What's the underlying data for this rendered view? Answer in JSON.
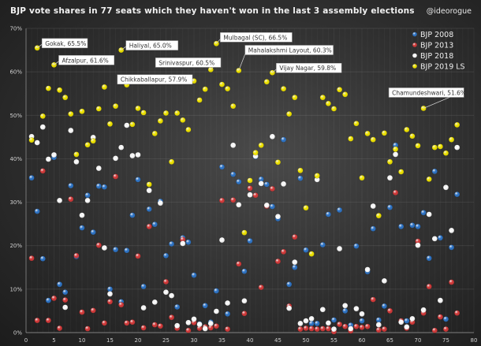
{
  "header": {
    "title": "BJP vote shares in 77 seats which they haven't won in the last 3 assembly elections",
    "handle": "@ideorogue"
  },
  "chart_data": {
    "type": "scatter",
    "title": "BJP vote shares in 77 seats which they haven't won in the last 3 assembly elections",
    "xlim": [
      0,
      80
    ],
    "ylim": [
      0,
      70
    ],
    "x_ticks": [
      "0",
      "5",
      "10",
      "15",
      "20",
      "25",
      "30",
      "35",
      "40",
      "45",
      "50",
      "55",
      "60",
      "65",
      "70",
      "75",
      "80"
    ],
    "y_ticks": [
      "0%",
      "10%",
      "20%",
      "30%",
      "40%",
      "50%",
      "60%",
      "70%"
    ],
    "grid": true,
    "legend": "top-right",
    "series": [
      {
        "name": "BJP 2008",
        "color": "#2e75c8",
        "values": [
          35.6,
          27.9,
          17.0,
          7.4,
          40.3,
          11.1,
          9.3,
          33.8,
          17.5,
          24.1,
          31.6,
          23.1,
          33.7,
          33.5,
          10.0,
          19.1,
          7.1,
          18.9,
          27.0,
          35.2,
          10.6,
          28.4,
          24.9,
          30.2,
          17.7,
          20.4,
          5.9,
          21.8,
          20.8,
          13.2,
          2.0,
          6.2,
          2.4,
          9.6,
          38.1,
          4.3,
          36.4,
          34.7,
          14.1,
          21.1,
          40.5,
          35.3,
          34.1,
          29.0,
          26.2,
          44.4,
          11.1,
          15.0,
          35.5,
          19.0,
          2.1,
          2.1,
          20.2,
          27.2,
          2.9,
          28.2,
          5.0,
          1.7,
          19.9,
          2.7,
          14.0,
          23.9,
          2.9,
          6.1,
          28.8,
          43.1,
          24.4,
          2.7,
          24.7,
          24.4,
          27.6,
          17.1,
          37.1,
          21.8,
          3.1,
          19.6,
          31.8
        ]
      },
      {
        "name": "BJP 2013",
        "color": "#d63a3a",
        "values": [
          17.1,
          2.8,
          37.2,
          2.8,
          7.9,
          1.0,
          7.5,
          30.7,
          17.7,
          4.7,
          0.9,
          5.1,
          20.1,
          2.2,
          7.1,
          35.9,
          6.4,
          2.2,
          2.4,
          17.6,
          1.1,
          24.4,
          1.8,
          1.5,
          11.7,
          3.5,
          1.0,
          21.4,
          0.5,
          2.3,
          1.0,
          1.3,
          1.1,
          1.5,
          30.4,
          0.8,
          30.5,
          15.8,
          4.4,
          33.2,
          31.6,
          10.4,
          29.1,
          33.1,
          16.4,
          18.6,
          6.1,
          22.0,
          0.8,
          1.0,
          0.9,
          0.8,
          0.9,
          0.9,
          0.2,
          1.9,
          1.4,
          0.4,
          1.4,
          1.2,
          1.4,
          7.6,
          0.6,
          0.8,
          5.0,
          32.2,
          2.7,
          1.0,
          2.4,
          21.0,
          4.5,
          10.6,
          0.5,
          3.6,
          0.8,
          11.6,
          4.5
        ]
      },
      {
        "name": "BJP 2018",
        "color": "#ffffff",
        "values": [
          45.1,
          43.7,
          47.3,
          39.9,
          40.9,
          30.4,
          5.8,
          46.5,
          39.3,
          27.0,
          30.4,
          44.9,
          37.8,
          19.5,
          8.9,
          40.1,
          42.6,
          47.7,
          40.7,
          40.9,
          5.7,
          32.7,
          7.0,
          29.8,
          9.3,
          8.5,
          1.6,
          20.5,
          2.3,
          3.1,
          1.9,
          0.9,
          2.1,
          4.9,
          21.3,
          6.8,
          43.1,
          29.4,
          7.3,
          31.7,
          40.6,
          34.3,
          29.3,
          45.1,
          26.7,
          34.2,
          5.6,
          16.2,
          2.1,
          2.7,
          3.2,
          35.2,
          5.3,
          2.2,
          0.8,
          19.3,
          6.2,
          0.9,
          5.5,
          4.3,
          14.5,
          29.1,
          1.8,
          11.9,
          35.6,
          41.0,
          2.4,
          1.3,
          3.2,
          20.1,
          5.2,
          27.2,
          21.6,
          7.4,
          33.4,
          23.5,
          42.6
        ]
      },
      {
        "name": "BJP 2019 LS",
        "color": "#f2e600",
        "values": [
          44.3,
          65.5,
          49.8,
          56.2,
          61.6,
          55.8,
          54.1,
          50.3,
          41.0,
          50.9,
          43.2,
          44.1,
          51.5,
          56.5,
          48.0,
          52.1,
          65.0,
          57.0,
          47.9,
          51.6,
          50.6,
          34.1,
          45.8,
          48.7,
          50.5,
          39.3,
          50.5,
          48.9,
          46.7,
          57.9,
          53.5,
          56.0,
          60.5,
          66.5,
          57.1,
          56.1,
          52.1,
          60.3,
          23.0,
          35.0,
          41.4,
          43.1,
          57.7,
          59.8,
          39.2,
          56.1,
          50.3,
          54.1,
          37.3,
          28.7,
          18.1,
          36.1,
          54.1,
          52.7,
          51.5,
          55.9,
          54.8,
          44.6,
          48.1,
          35.6,
          45.8,
          44.4,
          26.9,
          45.9,
          39.3,
          42.2,
          37.0,
          46.7,
          45.2,
          43.0,
          51.6,
          35.3,
          42.6,
          42.8,
          41.3,
          44.4,
          47.8
        ]
      }
    ],
    "annotations": [
      {
        "x": 2,
        "y": 65.5,
        "text": "Gokak, 65.5%"
      },
      {
        "x": 5,
        "y": 61.6,
        "text": "Afzalpur, 61.6%"
      },
      {
        "x": 17,
        "y": 65.0,
        "text": "Haliyal, 65.0%"
      },
      {
        "x": 30,
        "y": 57.9,
        "text": "Chikkaballapur, 57.9%"
      },
      {
        "x": 33,
        "y": 60.5,
        "text": "Srinivaspur, 60.5%"
      },
      {
        "x": 34,
        "y": 66.5,
        "text": "Mulbagal (SC), 66.5%"
      },
      {
        "x": 38,
        "y": 60.3,
        "text": "Mahalakshmi Layout, 60.3%"
      },
      {
        "x": 44,
        "y": 59.8,
        "text": "Vijay Nagar, 59.8%"
      },
      {
        "x": 71,
        "y": 51.6,
        "text": "Chamundeshwari, 51.6%"
      }
    ]
  }
}
